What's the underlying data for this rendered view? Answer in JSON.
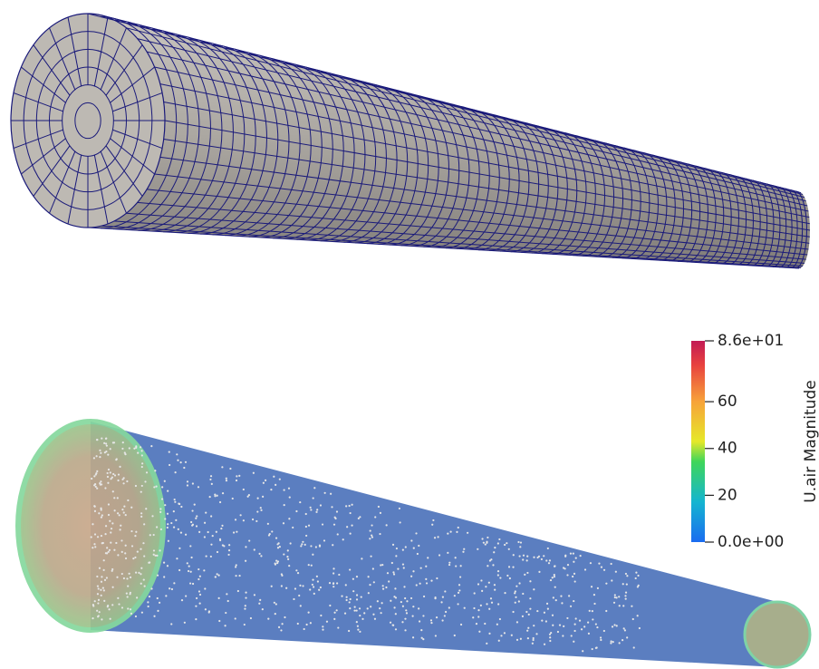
{
  "colorbar": {
    "title": "U.air Magnitude",
    "lim": [
      0,
      86
    ],
    "ticks": [
      {
        "value": 86,
        "label": "8.6e+01"
      },
      60,
      40,
      20,
      {
        "value": 0,
        "label": "0.0e+00"
      }
    ]
  }
}
